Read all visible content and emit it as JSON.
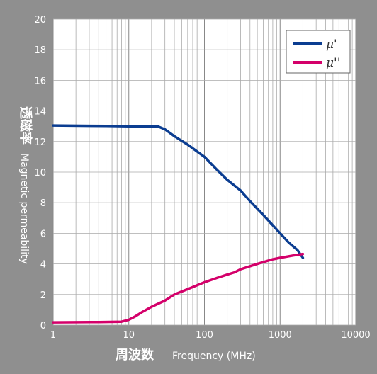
{
  "chart_data": {
    "type": "line",
    "x_scale": "log",
    "xlim": [
      1,
      10000
    ],
    "ylim": [
      0,
      20
    ],
    "grid": true,
    "legend_placement": "top-right",
    "xlabel_cn": "周波数",
    "xlabel_en": "Frequency (MHz)",
    "ylabel_cn": "透磁率",
    "ylabel_en": "Magnetic permeability",
    "x_ticks": [
      1,
      10,
      100,
      1000,
      10000
    ],
    "x_tick_labels": [
      "1",
      "10",
      "100",
      "1000",
      "10000"
    ],
    "y_ticks": [
      0,
      2,
      4,
      6,
      8,
      10,
      12,
      14,
      16,
      18,
      20
    ],
    "y_tick_labels": [
      "0",
      "2",
      "4",
      "6",
      "8",
      "10",
      "12",
      "14",
      "16",
      "18",
      "20"
    ],
    "series": [
      {
        "name": "μ'",
        "color": "#0b3d91",
        "points": [
          [
            1,
            13.05
          ],
          [
            5,
            13.02
          ],
          [
            10,
            13.0
          ],
          [
            24,
            13.0
          ],
          [
            30,
            12.8
          ],
          [
            40,
            12.35
          ],
          [
            60,
            11.8
          ],
          [
            100,
            11.0
          ],
          [
            150,
            10.1
          ],
          [
            200,
            9.5
          ],
          [
            300,
            8.8
          ],
          [
            400,
            8.1
          ],
          [
            600,
            7.2
          ],
          [
            1000,
            6.0
          ],
          [
            1300,
            5.4
          ],
          [
            1700,
            4.9
          ],
          [
            2000,
            4.4
          ]
        ]
      },
      {
        "name": "μ''",
        "color": "#d4006a",
        "points": [
          [
            1,
            0.18
          ],
          [
            4,
            0.2
          ],
          [
            8,
            0.22
          ],
          [
            10,
            0.35
          ],
          [
            12,
            0.55
          ],
          [
            15,
            0.85
          ],
          [
            20,
            1.2
          ],
          [
            30,
            1.6
          ],
          [
            40,
            2.0
          ],
          [
            60,
            2.35
          ],
          [
            100,
            2.8
          ],
          [
            150,
            3.1
          ],
          [
            200,
            3.3
          ],
          [
            250,
            3.45
          ],
          [
            300,
            3.65
          ],
          [
            500,
            4.0
          ],
          [
            800,
            4.3
          ],
          [
            1000,
            4.4
          ],
          [
            1500,
            4.55
          ],
          [
            2000,
            4.65
          ]
        ]
      }
    ]
  }
}
